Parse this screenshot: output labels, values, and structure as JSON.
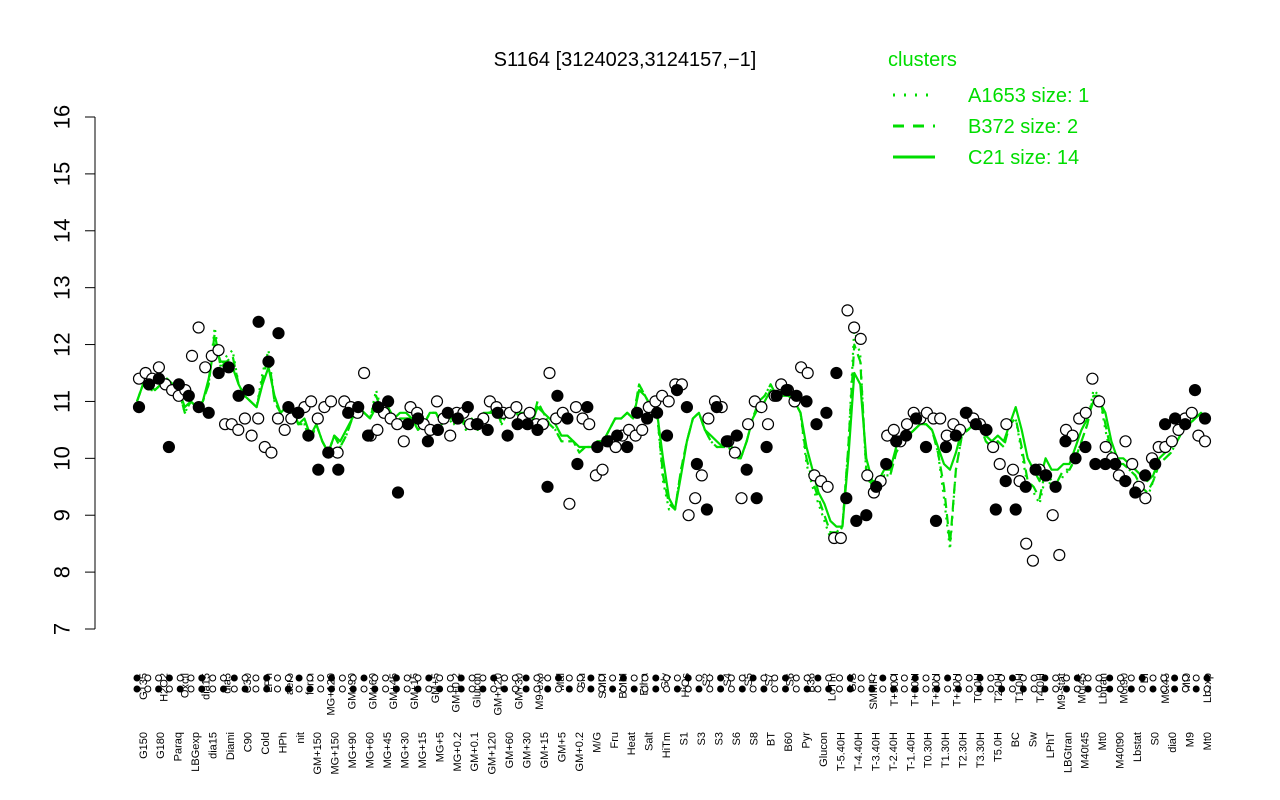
{
  "chart_data": {
    "type": "line",
    "title": "S1164 [3124023,3124157,−1]",
    "xlabel": "",
    "ylabel": "",
    "ylim": [
      7,
      16
    ],
    "yticks": [
      7,
      8,
      9,
      10,
      11,
      12,
      13,
      14,
      15,
      16
    ],
    "grid": false,
    "legend": {
      "title": "clusters",
      "placement": "top-right",
      "color": "#00dd00",
      "entries": [
        {
          "label": "A1653 size: 1",
          "style": "dotted"
        },
        {
          "label": "B372 size: 2",
          "style": "dashed"
        },
        {
          "label": "C21 size: 14",
          "style": "solid"
        }
      ]
    },
    "series_color": "#00dd00",
    "tick_labels_upper": [
      "G135",
      "H2O2",
      "Oxctl",
      "dia15",
      "dia5",
      "C30",
      "LPh",
      "aero",
      "ferm",
      "MG+120",
      "GM+90",
      "GM+60",
      "GM+45",
      "GM+15",
      "GM+5",
      "GM+0.2",
      "Glucon",
      "GM+120",
      "GM+30",
      "M9-exp",
      "Mal",
      "Glu",
      "SMM",
      "BMM",
      "Etha",
      "Gly",
      "HiOs",
      "S2",
      "S4",
      "S5",
      "S7",
      "S6",
      "B36",
      "LoTm",
      "G/S",
      "SMMPr",
      "T+90H",
      "T+60H",
      "T+30H",
      "T+10H",
      "T0.0H",
      "T2.0H",
      "T1.0H",
      "T4.0H",
      "M9-stat",
      "M0t45",
      "Lbtran",
      "M0t90",
      "BI",
      "M0t45",
      "Mt0",
      "Lbexp"
    ],
    "tick_labels_lower": [
      "G150",
      "G180",
      "Paraq",
      "LBGexp",
      "dia15",
      "Diami",
      "C90",
      "Cold",
      "HPh",
      "nit",
      "GM+150",
      "MG+150",
      "MG+90",
      "MG+60",
      "MG+45",
      "MG+30",
      "MG+15",
      "MG+5",
      "MG+0.2",
      "GM+0.1",
      "GM+120",
      "GM+60",
      "GM+30",
      "GM+15",
      "GM+5",
      "GM+0.2",
      "M/G",
      "Fru",
      "Heat",
      "Salt",
      "HiTm",
      "S1",
      "S3",
      "S3",
      "S6",
      "S8",
      "BT",
      "B60",
      "Pyr",
      "Glucon",
      "T-5.40H",
      "T-4.40H",
      "T-3.40H",
      "T-2.40H",
      "T-1.40H",
      "T0.30H",
      "T1.30H",
      "T2.30H",
      "T3.30H",
      "T5.0H",
      "BC",
      "Sw",
      "LPhT",
      "LBGtran",
      "M40t45",
      "Mt0",
      "M40t90",
      "Lbstat",
      "S0",
      "dia0",
      "M9",
      "Mt0"
    ],
    "series": [
      {
        "style": "solid",
        "values": [
          11.0,
          11.3,
          11.3,
          11.2,
          11.3,
          11.4,
          11.3,
          11.2,
          10.9,
          11.0,
          10.9,
          11.0,
          11.4,
          12.0,
          11.7,
          11.7,
          11.6,
          11.3,
          11.1,
          11.0,
          10.9,
          11.3,
          11.6,
          11.1,
          10.8,
          10.9,
          10.9,
          10.6,
          10.7,
          10.4,
          10.6,
          10.3,
          10.1,
          10.4,
          10.3,
          10.5,
          10.7,
          10.9,
          10.8,
          10.7,
          10.9,
          10.8,
          10.9,
          10.7,
          10.8,
          10.8,
          10.7,
          10.6,
          10.6,
          10.8,
          10.8,
          10.6,
          10.7,
          10.7,
          10.8,
          10.6,
          10.7,
          10.5,
          10.8,
          10.8,
          10.8,
          10.7,
          10.8,
          10.9,
          10.8,
          10.8,
          10.6,
          10.9,
          10.8,
          10.7,
          10.6,
          10.4,
          10.4,
          10.3,
          10.2,
          10.2,
          10.2,
          10.3,
          10.3,
          10.5,
          10.7,
          10.7,
          10.8,
          10.7,
          11.2,
          11.1,
          10.9,
          10.8,
          10.0,
          9.3,
          9.1,
          9.7,
          10.3,
          10.7,
          10.8,
          10.5,
          10.4,
          10.3,
          10.2,
          10.3,
          10.1,
          10.0,
          10.3,
          10.7,
          10.9,
          11.0,
          11.2,
          11.1,
          11.1,
          11.1,
          11.0,
          10.8,
          10.2,
          9.8,
          9.4,
          9.2,
          8.9,
          8.8,
          8.8,
          10.0,
          11.5,
          11.3,
          10.0,
          9.6,
          9.6,
          9.8,
          9.8,
          10.2,
          10.4,
          10.4,
          10.5,
          10.6,
          10.6,
          10.5,
          10.2,
          9.9,
          9.8,
          10.1,
          10.5,
          10.5,
          10.6,
          10.6,
          10.4,
          10.3,
          10.4,
          10.3,
          10.6,
          10.9,
          10.5,
          10.0,
          9.8,
          9.6,
          10.0,
          9.8,
          9.8,
          9.9,
          9.9,
          10.2,
          10.5,
          10.7,
          11.0,
          11.0,
          10.8,
          10.3,
          10.0,
          10.0,
          9.9,
          9.8,
          9.7,
          9.6,
          9.7,
          10.0,
          10.1,
          10.2,
          10.3,
          10.5,
          10.6,
          10.7,
          10.8,
          10.7
        ]
      },
      {
        "style": "dashed",
        "values": [
          11.0,
          11.3,
          11.2,
          11.2,
          11.3,
          11.4,
          11.3,
          11.2,
          10.8,
          11.0,
          10.9,
          11.0,
          11.3,
          12.2,
          11.6,
          11.7,
          11.8,
          11.3,
          11.1,
          11.0,
          10.9,
          11.4,
          11.8,
          11.0,
          10.8,
          10.9,
          10.8,
          10.6,
          10.6,
          10.3,
          10.6,
          10.3,
          10.1,
          10.4,
          10.2,
          10.4,
          10.7,
          10.9,
          10.8,
          10.7,
          11.1,
          10.8,
          10.8,
          10.6,
          10.7,
          10.7,
          10.7,
          10.5,
          10.6,
          10.8,
          10.8,
          10.6,
          10.7,
          10.6,
          10.8,
          10.5,
          10.7,
          10.5,
          10.8,
          10.8,
          10.9,
          10.6,
          10.8,
          10.9,
          10.7,
          10.8,
          10.6,
          11.0,
          10.8,
          10.6,
          10.5,
          10.3,
          10.3,
          10.3,
          10.1,
          10.2,
          10.2,
          10.3,
          10.3,
          10.5,
          10.7,
          10.7,
          10.8,
          10.7,
          11.3,
          11.1,
          10.9,
          10.8,
          9.7,
          9.2,
          9.1,
          9.8,
          10.3,
          10.7,
          10.8,
          10.5,
          10.3,
          10.2,
          10.2,
          10.2,
          10.0,
          10.0,
          10.3,
          10.7,
          11.0,
          11.1,
          11.3,
          11.1,
          11.2,
          11.1,
          11.0,
          10.8,
          10.0,
          9.6,
          9.3,
          9.0,
          8.7,
          8.7,
          8.8,
          10.2,
          12.0,
          11.7,
          9.8,
          9.5,
          9.5,
          9.7,
          9.7,
          10.1,
          10.3,
          10.4,
          10.5,
          10.6,
          10.6,
          10.5,
          10.1,
          9.5,
          8.5,
          9.8,
          10.4,
          10.5,
          10.6,
          10.6,
          10.3,
          10.2,
          10.3,
          10.2,
          10.6,
          10.7,
          10.2,
          9.6,
          9.5,
          9.3,
          9.8,
          9.6,
          9.6,
          9.8,
          9.8,
          10.0,
          10.3,
          10.6,
          11.1,
          11.1,
          10.6,
          10.1,
          9.9,
          9.9,
          9.8,
          9.7,
          9.5,
          9.4,
          9.6,
          9.9,
          10.0,
          10.1,
          10.3,
          10.5,
          10.6,
          10.7,
          10.8,
          10.7
        ]
      },
      {
        "style": "dotted",
        "values": [
          11.0,
          11.3,
          11.2,
          11.2,
          11.3,
          11.4,
          11.3,
          11.2,
          10.8,
          11.0,
          10.9,
          11.0,
          11.3,
          12.3,
          11.6,
          11.8,
          11.9,
          11.3,
          11.1,
          11.0,
          10.9,
          11.5,
          11.9,
          11.0,
          10.8,
          10.9,
          10.8,
          10.6,
          10.6,
          10.3,
          10.6,
          10.3,
          10.1,
          10.4,
          10.2,
          10.4,
          10.7,
          10.9,
          10.8,
          10.7,
          11.2,
          10.8,
          10.8,
          10.6,
          10.7,
          10.7,
          10.7,
          10.5,
          10.6,
          10.8,
          10.8,
          10.6,
          10.7,
          10.6,
          10.8,
          10.5,
          10.7,
          10.5,
          10.8,
          10.8,
          10.9,
          10.6,
          10.8,
          10.9,
          10.7,
          10.8,
          10.6,
          11.0,
          10.8,
          10.6,
          10.5,
          10.3,
          10.3,
          10.3,
          10.1,
          10.2,
          10.2,
          10.3,
          10.3,
          10.5,
          10.7,
          10.7,
          10.8,
          10.7,
          11.3,
          11.1,
          10.9,
          10.8,
          9.6,
          9.1,
          9.1,
          9.8,
          10.3,
          10.7,
          10.8,
          10.5,
          10.3,
          10.2,
          10.2,
          10.2,
          10.0,
          10.0,
          10.3,
          10.7,
          11.0,
          11.1,
          11.3,
          11.1,
          11.2,
          11.1,
          11.0,
          10.8,
          9.9,
          9.5,
          9.2,
          8.9,
          8.6,
          8.6,
          8.8,
          10.2,
          12.3,
          11.8,
          9.7,
          9.5,
          9.5,
          9.7,
          9.7,
          10.1,
          10.3,
          10.4,
          10.5,
          10.6,
          10.6,
          10.5,
          10.1,
          9.3,
          8.4,
          9.8,
          10.4,
          10.5,
          10.6,
          10.6,
          10.3,
          10.2,
          10.3,
          10.2,
          10.6,
          10.7,
          10.1,
          9.5,
          9.4,
          9.2,
          9.7,
          9.5,
          9.5,
          9.7,
          9.8,
          10.0,
          10.3,
          10.6,
          11.2,
          11.1,
          10.5,
          10.0,
          9.9,
          9.9,
          9.8,
          9.7,
          9.4,
          9.3,
          9.6,
          9.9,
          10.0,
          10.1,
          10.3,
          10.5,
          10.6,
          10.7,
          10.8,
          10.7
        ]
      }
    ],
    "points": {
      "open_values": [
        11.4,
        11.5,
        11.4,
        11.6,
        11.3,
        11.2,
        11.1,
        11.2,
        11.8,
        12.3,
        11.6,
        11.8,
        11.9,
        10.6,
        10.6,
        10.5,
        10.7,
        10.4,
        10.7,
        10.2,
        10.1,
        10.7,
        10.5,
        10.7,
        10.8,
        10.9,
        11.0,
        10.7,
        10.9,
        11.0,
        10.1,
        11.0,
        10.9,
        10.8,
        11.5,
        10.4,
        10.5,
        10.8,
        10.7,
        10.6,
        10.3,
        10.9,
        10.8,
        10.6,
        10.5,
        11.0,
        10.7,
        10.4,
        10.8,
        10.8,
        10.6,
        10.6,
        10.7,
        11.0,
        10.9,
        10.8,
        10.8,
        10.9,
        10.7,
        10.8,
        10.6,
        10.6,
        11.5,
        10.7,
        10.8,
        9.2,
        10.9,
        10.7,
        10.6,
        9.7,
        9.8,
        10.3,
        10.2,
        10.4,
        10.5,
        10.4,
        10.5,
        10.9,
        11.0,
        11.1,
        11.0,
        11.3,
        11.3,
        9.0,
        9.3,
        9.7,
        10.7,
        11.0,
        10.9,
        10.3,
        10.1,
        9.3,
        10.6,
        11.0,
        10.9,
        10.6,
        11.1,
        11.3,
        11.2,
        11.0,
        11.6,
        11.5,
        9.7,
        9.6,
        9.5,
        8.6,
        8.6,
        12.6,
        12.3,
        12.1,
        9.7,
        9.4,
        9.6,
        10.4,
        10.5,
        10.3,
        10.6,
        10.8,
        10.7,
        10.8,
        10.7,
        10.7,
        10.4,
        10.6,
        10.5,
        10.8,
        10.7,
        10.6,
        10.5,
        10.2,
        9.9,
        10.6,
        9.8,
        9.6,
        8.5,
        8.2,
        9.8,
        9.7,
        9.0,
        8.3,
        10.5,
        10.4,
        10.7,
        10.8,
        11.4,
        11.0,
        10.2,
        10.0,
        9.7,
        10.3,
        9.9,
        9.5,
        9.3,
        10.0,
        10.2,
        10.2,
        10.3,
        10.5,
        10.7,
        10.8,
        10.4,
        10.3
      ],
      "filled_values": [
        10.9,
        11.3,
        11.4,
        10.2,
        11.3,
        11.1,
        10.9,
        10.8,
        11.5,
        11.6,
        11.1,
        11.2,
        12.4,
        11.7,
        12.2,
        10.9,
        10.8,
        10.4,
        9.8,
        10.1,
        9.8,
        10.8,
        10.9,
        10.4,
        10.9,
        11.0,
        9.4,
        10.6,
        10.7,
        10.3,
        10.5,
        10.8,
        10.7,
        10.9,
        10.6,
        10.5,
        10.8,
        10.4,
        10.6,
        10.6,
        10.5,
        9.5,
        11.1,
        10.7,
        9.9,
        10.9,
        10.2,
        10.3,
        10.4,
        10.2,
        10.8,
        10.7,
        10.8,
        10.4,
        11.2,
        10.9,
        9.9,
        9.1,
        10.9,
        10.3,
        10.4,
        9.8,
        9.3,
        10.2,
        11.1,
        11.2,
        11.1,
        11.0,
        10.6,
        10.8,
        11.5,
        9.3,
        8.9,
        9.0,
        9.5,
        9.9,
        10.3,
        10.4,
        10.7,
        10.2,
        8.9,
        10.2,
        10.4,
        10.8,
        10.6,
        10.5,
        9.1,
        9.6,
        9.1,
        9.5,
        9.8,
        9.7,
        9.5,
        10.3,
        10.0,
        10.2,
        9.9,
        9.9,
        9.9,
        9.6,
        9.4,
        9.7,
        9.9,
        10.6,
        10.7,
        10.6,
        11.2,
        10.7
      ]
    }
  }
}
